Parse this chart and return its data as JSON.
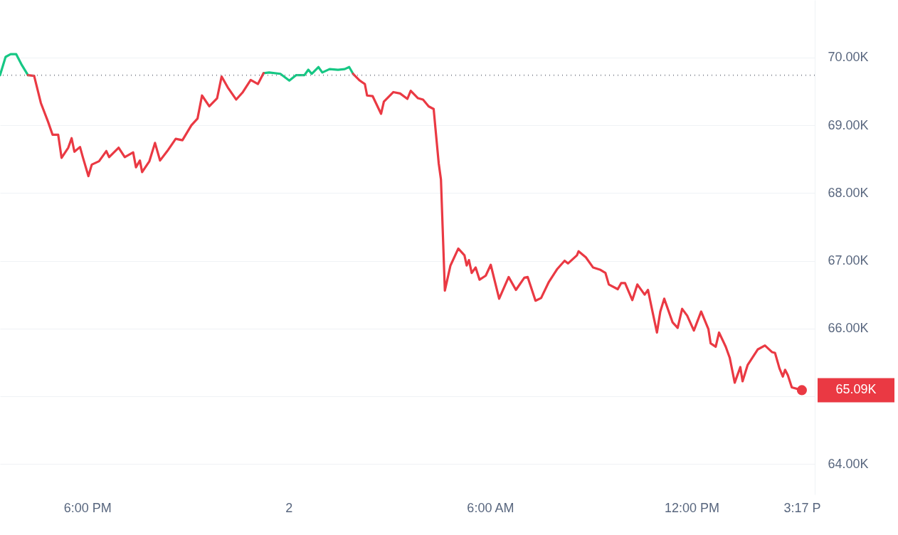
{
  "chart_data": {
    "type": "line",
    "x": [
      "--04-01T15:24",
      "--04-01T15:34",
      "--04-01T15:43",
      "--04-01T15:53",
      "--04-01T16:03",
      "--04-01T16:14",
      "--04-01T16:25",
      "--04-01T16:37",
      "--04-01T16:50",
      "--04-01T16:58",
      "--04-01T17:08",
      "--04-01T17:14",
      "--04-01T17:26",
      "--04-01T17:32",
      "--04-01T17:37",
      "--04-01T17:47",
      "--04-01T17:52",
      "--04-01T18:02",
      "--04-01T18:08",
      "--04-01T18:21",
      "--04-01T18:34",
      "--04-01T18:39",
      "--04-01T18:56",
      "--04-01T19:07",
      "--04-01T19:22",
      "--04-01T19:27",
      "--04-01T19:34",
      "--04-01T19:38",
      "--04-01T19:51",
      "--04-01T20:01",
      "--04-01T20:10",
      "--04-01T20:23",
      "--04-01T20:38",
      "--04-01T20:50",
      "--04-01T21:06",
      "--04-01T21:17",
      "--04-01T21:25",
      "--04-01T21:38",
      "--04-01T21:52",
      "--04-01T22:00",
      "--04-01T22:11",
      "--04-01T22:26",
      "--04-01T22:38",
      "--04-01T22:52",
      "--04-01T23:05",
      "--04-01T23:15",
      "--04-01T23:25",
      "--04-01T23:45",
      "--04-02T00:01",
      "--04-02T00:13",
      "--04-02T00:28",
      "--04-02T00:35",
      "--04-02T00:41",
      "--04-02T00:53",
      "--04-02T01:00",
      "--04-02T01:13",
      "--04-02T01:28",
      "--04-02T01:40",
      "--04-02T01:48",
      "--04-02T01:55",
      "--04-02T02:07",
      "--04-02T02:16",
      "--04-02T02:20",
      "--04-02T02:30",
      "--04-02T02:45",
      "--04-02T02:50",
      "--04-02T03:07",
      "--04-02T03:19",
      "--04-02T03:32",
      "--04-02T03:38",
      "--04-02T03:51",
      "--04-02T04:00",
      "--04-02T04:10",
      "--04-02T04:19",
      "--04-02T04:22",
      "--04-02T04:28",
      "--04-02T04:32",
      "--04-02T04:39",
      "--04-02T04:49",
      "--04-02T05:03",
      "--04-02T05:14",
      "--04-02T05:18",
      "--04-02T05:22",
      "--04-02T05:27",
      "--04-02T05:34",
      "--04-02T05:41",
      "--04-02T05:52",
      "--04-02T06:01",
      "--04-02T06:16",
      "--04-02T06:33",
      "--04-02T06:46",
      "--04-02T07:01",
      "--04-02T07:07",
      "--04-02T07:21",
      "--04-02T07:31",
      "--04-02T07:45",
      "--04-02T08:00",
      "--04-02T08:13",
      "--04-02T08:19",
      "--04-02T08:35",
      "--04-02T08:38",
      "--04-02T08:51",
      "--04-02T09:04",
      "--04-02T09:16",
      "--04-02T09:26",
      "--04-02T09:32",
      "--04-02T09:48",
      "--04-02T09:54",
      "--04-02T10:01",
      "--04-02T10:14",
      "--04-02T10:23",
      "--04-02T10:36",
      "--04-02T10:42",
      "--04-02T10:49",
      "--04-02T10:58",
      "--04-02T11:04",
      "--04-02T11:11",
      "--04-02T11:26",
      "--04-02T11:35",
      "--04-02T11:43",
      "--04-02T11:52",
      "--04-02T12:04",
      "--04-02T12:17",
      "--04-02T12:30",
      "--04-02T12:34",
      "--04-02T12:43",
      "--04-02T12:49",
      "--04-02T13:01",
      "--04-02T13:08",
      "--04-02T13:17",
      "--04-02T13:27",
      "--04-02T13:31",
      "--04-02T13:40",
      "--04-02T13:58",
      "--04-02T14:11",
      "--04-02T14:24",
      "--04-02T14:29",
      "--04-02T14:37",
      "--04-02T14:43",
      "--04-02T14:47",
      "--04-02T14:52",
      "--04-02T14:59",
      "--04-02T15:17"
    ],
    "series": [
      {
        "color": "#16c784",
        "values": [
          69.74,
          70.01,
          70.05,
          70.05,
          69.89,
          69.74,
          null,
          null,
          null,
          null,
          null,
          null,
          null,
          null,
          null,
          null,
          null,
          null,
          null,
          null,
          null,
          null,
          null,
          null,
          null,
          null,
          null,
          null,
          null,
          null,
          null,
          null,
          null,
          null,
          null,
          null,
          null,
          null,
          null,
          null,
          null,
          null,
          null,
          null,
          null,
          69.77,
          69.78,
          69.76,
          69.66,
          69.74,
          69.74,
          69.82,
          69.76,
          69.86,
          69.78,
          69.83,
          69.82,
          69.83,
          69.86,
          69.76,
          null,
          null,
          null,
          null,
          null,
          null,
          null,
          null,
          null,
          null,
          null,
          null,
          null,
          null,
          null,
          null,
          null,
          null,
          null,
          null,
          null,
          null,
          null,
          null,
          null,
          null,
          null,
          null,
          null,
          null,
          null,
          null,
          null,
          null,
          null,
          null,
          null,
          null,
          null,
          null,
          null,
          null,
          null,
          null,
          null,
          null,
          null,
          null,
          null,
          null,
          null,
          null,
          null,
          null,
          null,
          null,
          null,
          null,
          null,
          null,
          null,
          null,
          null,
          null,
          null,
          null,
          null,
          null,
          null,
          null,
          null,
          null,
          null,
          null,
          null,
          null,
          null,
          null,
          null,
          null,
          null,
          null,
          null
        ]
      },
      {
        "color": "#ea3943",
        "values": [
          null,
          null,
          null,
          null,
          null,
          69.74,
          69.73,
          69.33,
          69.05,
          68.86,
          68.86,
          68.52,
          68.67,
          68.81,
          68.61,
          68.68,
          68.53,
          68.25,
          68.42,
          68.47,
          68.62,
          68.53,
          68.67,
          68.53,
          68.6,
          68.38,
          68.48,
          68.31,
          68.47,
          68.74,
          68.48,
          68.62,
          68.8,
          68.78,
          69.0,
          69.1,
          69.44,
          69.28,
          69.4,
          69.72,
          69.56,
          69.38,
          69.49,
          69.67,
          69.61,
          69.77,
          null,
          null,
          null,
          null,
          null,
          null,
          null,
          null,
          null,
          null,
          null,
          null,
          null,
          69.76,
          69.66,
          69.61,
          69.44,
          69.43,
          69.17,
          69.35,
          69.49,
          69.47,
          69.39,
          69.51,
          69.4,
          69.38,
          69.28,
          69.24,
          68.97,
          68.44,
          68.2,
          66.56,
          66.93,
          67.18,
          67.08,
          66.93,
          67.01,
          66.82,
          66.9,
          66.72,
          66.78,
          66.94,
          66.44,
          66.76,
          66.57,
          66.75,
          66.76,
          66.41,
          66.45,
          66.69,
          66.88,
          67.0,
          66.96,
          67.08,
          67.14,
          67.05,
          66.9,
          66.87,
          66.82,
          66.65,
          66.58,
          66.67,
          66.67,
          66.42,
          66.65,
          66.5,
          66.57,
          66.29,
          65.94,
          66.25,
          66.44,
          66.09,
          66.01,
          66.29,
          66.19,
          65.97,
          66.25,
          65.99,
          65.78,
          65.73,
          65.94,
          65.73,
          65.57,
          65.2,
          65.43,
          65.22,
          65.46,
          65.69,
          65.75,
          65.65,
          65.64,
          65.41,
          65.29,
          65.39,
          65.31,
          65.13,
          65.09
        ]
      }
    ],
    "xlim": [
      "--04-01T15:24",
      "--04-02T15:40"
    ],
    "xticks": [
      {
        "value": "--04-01T18:00",
        "label": "6:00 PM"
      },
      {
        "value": "--04-02T00:00",
        "label": "2"
      },
      {
        "value": "--04-02T06:00",
        "label": "6:00 AM"
      },
      {
        "value": "--04-02T12:00",
        "label": "12:00 PM"
      },
      {
        "value": "--04-02T15:17",
        "label": "3:17 P"
      }
    ],
    "ylim": [
      63.55,
      70.85
    ],
    "yticks": [
      {
        "value": 64,
        "label": "64.00K"
      },
      {
        "value": 65,
        "label": null
      },
      {
        "value": 66,
        "label": "66.00K"
      },
      {
        "value": 67,
        "label": "67.00K"
      },
      {
        "value": 68,
        "label": "68.00K"
      },
      {
        "value": 69,
        "label": "69.00K"
      },
      {
        "value": 70,
        "label": "70.00K"
      }
    ],
    "grid": "y",
    "ref_lines": [
      {
        "axis": "y",
        "value": 69.74,
        "color": "#8a8f99",
        "line_style": "dotted"
      }
    ],
    "annotations": [
      {
        "text": "65.09K",
        "x": "--04-02T15:17",
        "y": 65.09
      }
    ]
  }
}
